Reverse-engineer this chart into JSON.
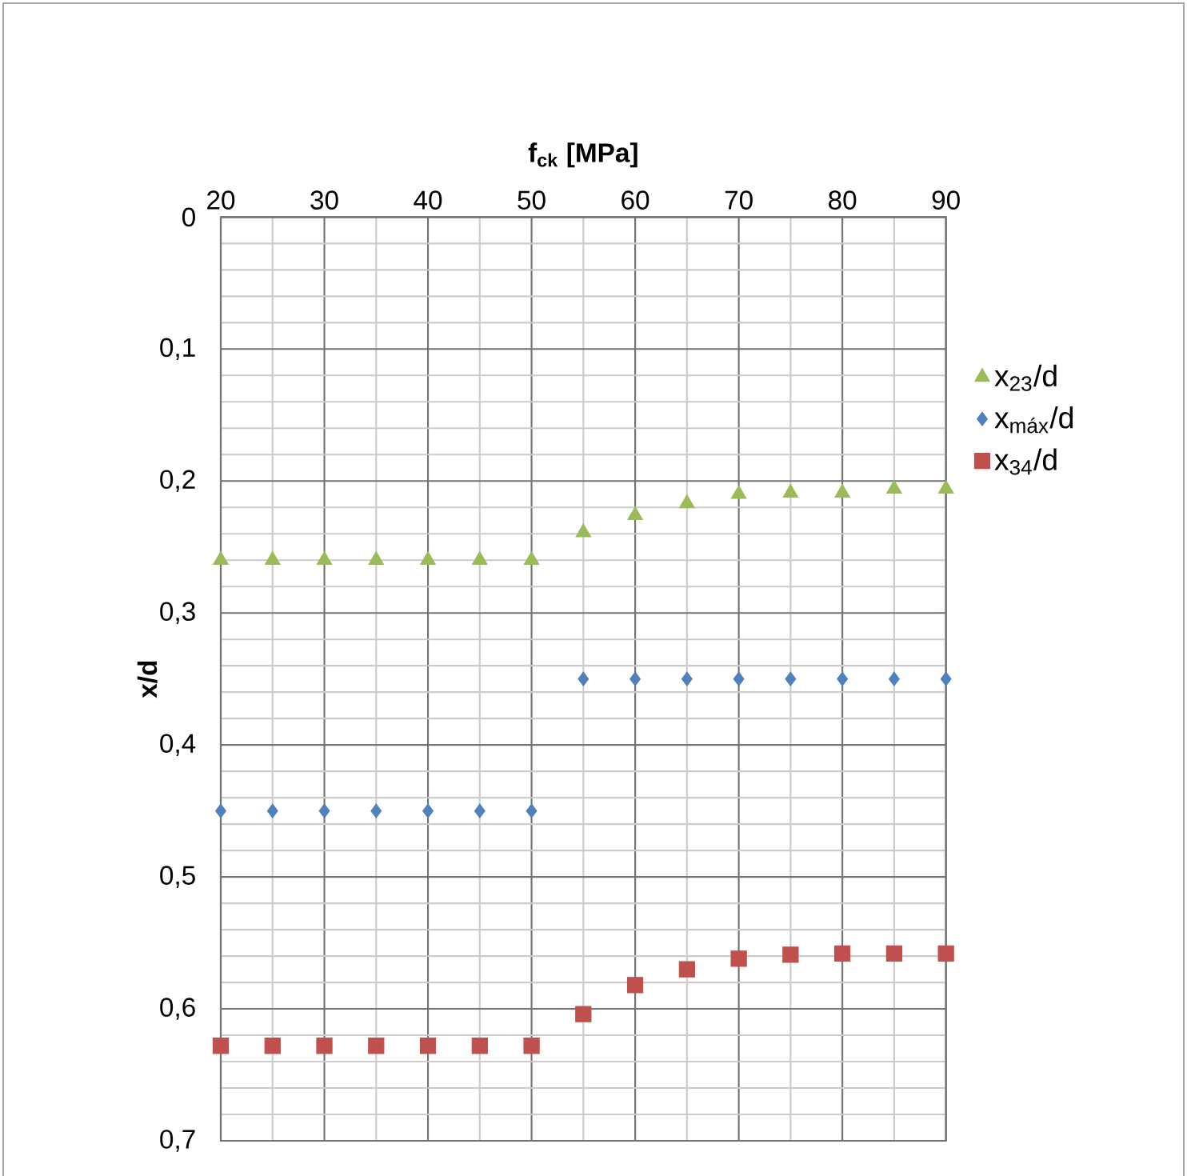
{
  "chart_data": {
    "type": "scatter",
    "xlabel": "f$_{ck}$ [MPa]",
    "ylabel": "x/d",
    "x": [
      20,
      25,
      30,
      35,
      40,
      45,
      50,
      55,
      60,
      65,
      70,
      75,
      80,
      85,
      90
    ],
    "series": [
      {
        "name": "x$_{23}$/d",
        "color": "#9bbb59",
        "marker": "triangle",
        "values": [
          0.26,
          0.26,
          0.26,
          0.26,
          0.26,
          0.26,
          0.26,
          0.239,
          0.226,
          0.217,
          0.21,
          0.209,
          0.209,
          0.206,
          0.206
        ]
      },
      {
        "name": "x$_{máx}$/d",
        "color": "#4f81bd",
        "marker": "diamond",
        "values": [
          0.45,
          0.45,
          0.45,
          0.45,
          0.45,
          0.45,
          0.45,
          0.35,
          0.35,
          0.35,
          0.35,
          0.35,
          0.35,
          0.35,
          0.35
        ]
      },
      {
        "name": "x$_{34}$/d",
        "color": "#c0504d",
        "marker": "square",
        "values": [
          0.628,
          0.628,
          0.628,
          0.628,
          0.628,
          0.628,
          0.628,
          0.604,
          0.582,
          0.57,
          0.562,
          0.559,
          0.558,
          0.558,
          0.558
        ]
      }
    ],
    "xlim": [
      20,
      90
    ],
    "xticks": [
      20,
      30,
      40,
      50,
      60,
      70,
      80,
      90
    ],
    "ylim": [
      0.7,
      0
    ],
    "yticks": [
      {
        "value": 0,
        "label": "0"
      },
      {
        "value": 0.1,
        "label": "0,1"
      },
      {
        "value": 0.2,
        "label": "0,2"
      },
      {
        "value": 0.3,
        "label": "0,3"
      },
      {
        "value": 0.4,
        "label": "0,4"
      },
      {
        "value": 0.5,
        "label": "0,5"
      },
      {
        "value": 0.6,
        "label": "0,6"
      },
      {
        "value": 0.7,
        "label": "0,7"
      }
    ],
    "grid": true,
    "legend": "right"
  }
}
